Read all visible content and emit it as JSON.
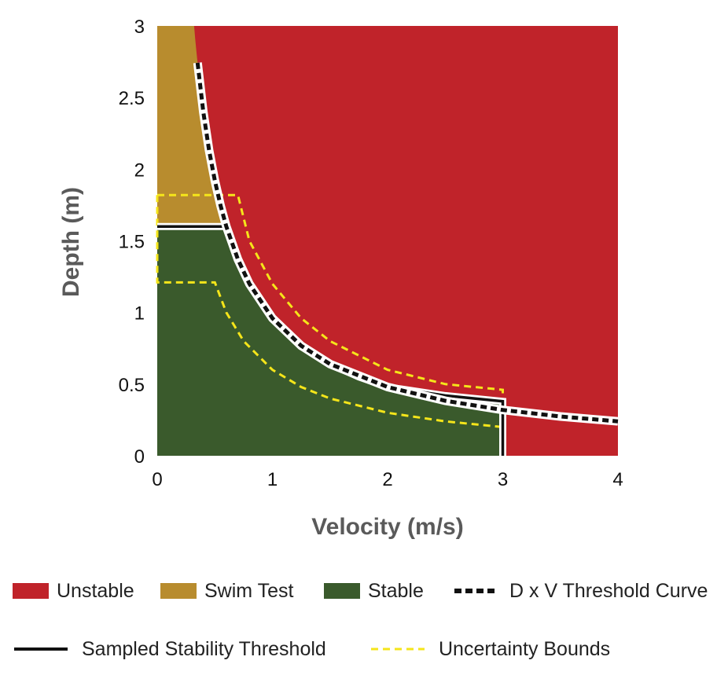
{
  "chart_data": {
    "type": "area",
    "xlabel": "Velocity (m/s)",
    "ylabel": "Depth (m)",
    "xlim": [
      0,
      4
    ],
    "ylim": [
      0,
      3
    ],
    "xticks": [
      "0",
      "1",
      "2",
      "3",
      "4"
    ],
    "yticks": [
      "0",
      "0.5",
      "1",
      "1.5",
      "2",
      "2.5",
      "3"
    ],
    "grid": false,
    "legend_position": "bottom",
    "regions": [
      {
        "name": "Unstable",
        "color": "#c0232a"
      },
      {
        "name": "Swim Test",
        "color": "#b88c2e"
      },
      {
        "name": "Stable",
        "color": "#3a5a2c"
      }
    ],
    "dv_threshold_constant": 0.96,
    "series": [
      {
        "name": "D x V Threshold Curve",
        "style": "dashed-black-white",
        "x": [
          0.35,
          0.4,
          0.45,
          0.5,
          0.55,
          0.6,
          0.7,
          0.8,
          1.0,
          1.25,
          1.5,
          2.0,
          2.5,
          3.0,
          3.5,
          4.0
        ],
        "y": [
          2.743,
          2.4,
          2.133,
          1.92,
          1.745,
          1.6,
          1.371,
          1.2,
          0.96,
          0.768,
          0.64,
          0.48,
          0.384,
          0.32,
          0.274,
          0.24
        ]
      },
      {
        "name": "Sampled Stability Threshold",
        "style": "solid-black",
        "x": [
          0.0,
          0.6,
          0.7,
          0.8,
          1.0,
          1.25,
          1.5,
          1.75,
          2.0,
          2.5,
          3.0,
          3.0
        ],
        "y": [
          1.6,
          1.6,
          1.37,
          1.2,
          0.96,
          0.768,
          0.64,
          0.55,
          0.48,
          0.42,
          0.38,
          0.0
        ]
      },
      {
        "name": "Uncertainty Bounds",
        "style": "dashed-yellow",
        "bounds": [
          {
            "x": [
              0.0,
              0.7,
              0.8,
              1.0,
              1.25,
              1.5,
              2.0,
              2.5,
              3.0,
              3.0
            ],
            "y": [
              1.82,
              1.82,
              1.5,
              1.2,
              0.96,
              0.8,
              0.6,
              0.5,
              0.46,
              0.2
            ]
          },
          {
            "x": [
              0.0,
              0.0,
              0.5,
              0.6,
              0.75,
              1.0,
              1.25,
              1.5,
              2.0,
              2.5,
              3.0
            ],
            "y": [
              1.82,
              1.21,
              1.21,
              1.0,
              0.8,
              0.6,
              0.48,
              0.4,
              0.3,
              0.24,
              0.2
            ]
          }
        ]
      }
    ]
  },
  "legend": {
    "unstable": "Unstable",
    "swim_test": "Swim Test",
    "stable": "Stable",
    "dv_curve": "D x V Threshold Curve",
    "sampled": "Sampled Stability Threshold",
    "uncertainty": "Uncertainty Bounds"
  }
}
